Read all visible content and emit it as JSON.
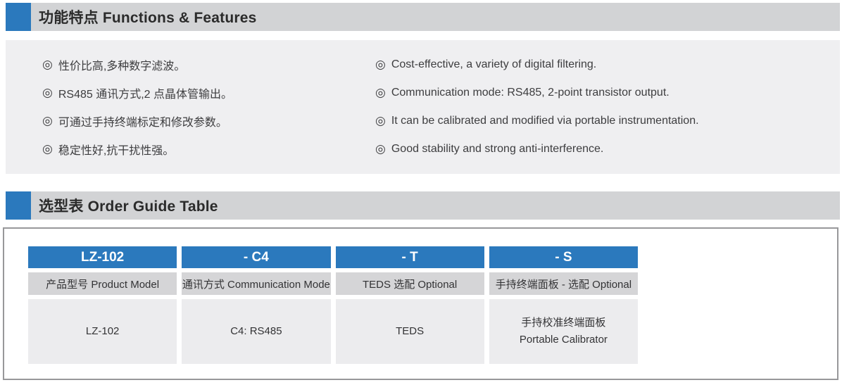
{
  "colors": {
    "accent_blue": "#2b79bd",
    "header_bar_gray": "#d2d3d5",
    "panel_gray": "#efeff1",
    "label_row_gray": "#d5d5d7",
    "value_row_gray": "#ececee",
    "container_border_gray": "#98989a",
    "text_dark": "#2b2b2b"
  },
  "features": {
    "title": "功能特点 Functions & Features",
    "bullet": "◎",
    "zh": [
      "性价比高,多种数字滤波。",
      "RS485 通讯方式,2 点晶体管输出。",
      "可通过手持终端标定和修改参数。",
      "稳定性好,抗干扰性强。"
    ],
    "en": [
      "Cost-effective, a variety of digital filtering.",
      "Communication mode: RS485, 2-point transistor output.",
      "It can be calibrated and modified via portable instrumentation.",
      "Good stability and strong anti-interference."
    ]
  },
  "order_guide": {
    "title": "选型表 Order Guide Table",
    "codes": [
      "LZ-102",
      "- C4",
      "- T",
      "- S"
    ],
    "labels": [
      "产品型号 Product Model",
      "通讯方式 Communication Mode",
      "TEDS 选配 Optional",
      "手持终端面板 - 选配 Optional"
    ],
    "values": [
      {
        "line1": "LZ-102"
      },
      {
        "line1": "C4: RS485"
      },
      {
        "line1": "TEDS"
      },
      {
        "line1": "手持校准终端面板",
        "line2": "Portable Calibrator"
      }
    ]
  }
}
